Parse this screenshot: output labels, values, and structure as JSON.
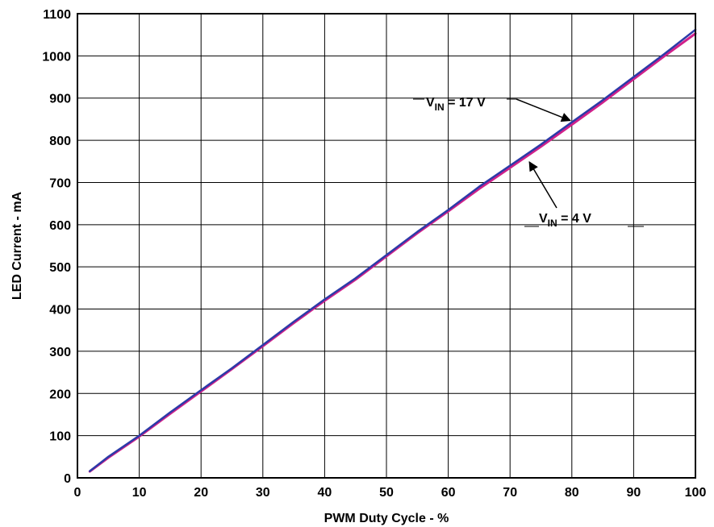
{
  "chart_data": {
    "type": "line",
    "title": "",
    "xlabel": "PWM Duty Cycle - %",
    "ylabel": "LED Current - mA",
    "xlim": [
      0,
      100
    ],
    "ylim": [
      0,
      1100
    ],
    "xticks": [
      0,
      10,
      20,
      30,
      40,
      50,
      60,
      70,
      80,
      90,
      100
    ],
    "yticks": [
      0,
      100,
      200,
      300,
      400,
      500,
      600,
      700,
      800,
      900,
      1000,
      1100
    ],
    "grid": true,
    "legend": "none",
    "series": [
      {
        "name": "VIN = 4 V",
        "color": "#d0208a",
        "x": [
          2,
          5,
          10,
          15,
          20,
          25,
          30,
          35,
          40,
          45,
          50,
          55,
          60,
          65,
          70,
          75,
          80,
          85,
          90,
          95,
          100
        ],
        "y": [
          15,
          48,
          98,
          152,
          205,
          258,
          312,
          367,
          420,
          470,
          525,
          580,
          632,
          685,
          735,
          785,
          837,
          890,
          945,
          1000,
          1053
        ]
      },
      {
        "name": "VIN = 17 V",
        "color": "#2c3aa8",
        "x": [
          2,
          5,
          10,
          15,
          20,
          25,
          30,
          35,
          40,
          45,
          50,
          55,
          60,
          65,
          70,
          75,
          80,
          85,
          90,
          95,
          100
        ],
        "y": [
          16,
          50,
          100,
          155,
          208,
          260,
          315,
          370,
          423,
          473,
          528,
          583,
          635,
          690,
          740,
          790,
          843,
          895,
          950,
          1005,
          1062
        ]
      }
    ],
    "annotations": [
      {
        "main": "V",
        "sub": "IN",
        "rest": " = 17 V",
        "x": 80,
        "y": 843
      },
      {
        "main": "V",
        "sub": "IN",
        "rest": " = 4 V",
        "x": 73,
        "y": 760
      }
    ]
  }
}
